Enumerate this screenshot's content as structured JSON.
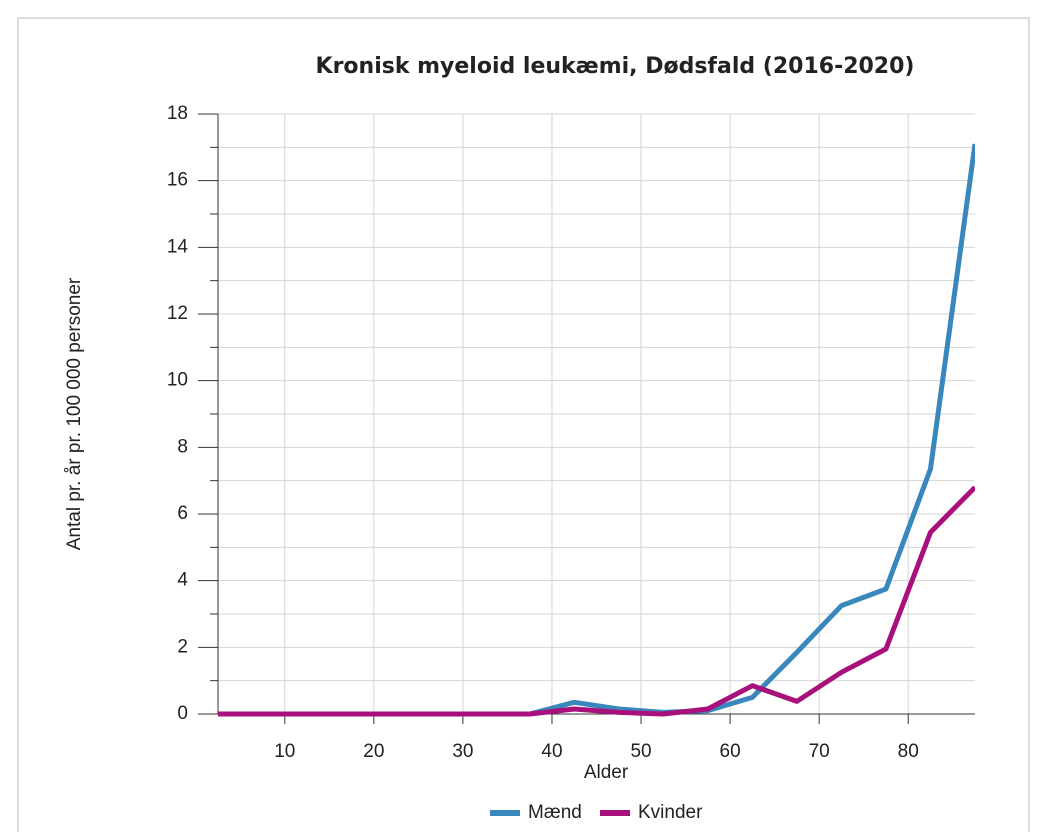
{
  "chart_data": {
    "type": "line",
    "title": "Kronisk myeloid leukæmi, Dødsfald (2016-2020)",
    "xlabel": "Alder",
    "ylabel": "Antal pr. år pr. 100 000 personer",
    "x": [
      2.5,
      7.5,
      12.5,
      17.5,
      22.5,
      27.5,
      32.5,
      37.5,
      42.5,
      47.5,
      52.5,
      57.5,
      62.5,
      67.5,
      72.5,
      77.5,
      82.5,
      87.5
    ],
    "series": [
      {
        "name": "Mænd",
        "color": "#3a87bd",
        "values": [
          0,
          0,
          0,
          0,
          0,
          0,
          0,
          0,
          0.35,
          0.15,
          0.05,
          0.1,
          0.5,
          1.85,
          3.25,
          3.75,
          7.35,
          17.1
        ]
      },
      {
        "name": "Kvinder",
        "color": "#a8117c",
        "values": [
          0,
          0,
          0,
          0,
          0,
          0,
          0,
          0,
          0.15,
          0.05,
          0,
          0.15,
          0.85,
          0.38,
          1.25,
          1.95,
          5.45,
          6.8
        ]
      }
    ],
    "xlim": [
      2.5,
      87.5
    ],
    "xticks": [
      10,
      20,
      30,
      40,
      50,
      60,
      70,
      80
    ],
    "ylim": [
      0,
      18
    ],
    "yticks": [
      0,
      2,
      4,
      6,
      8,
      10,
      12,
      14,
      16,
      18
    ],
    "yminorticks": [
      1,
      3,
      5,
      7,
      9,
      11,
      13,
      15,
      17
    ],
    "grid": true,
    "legend": "bottom"
  }
}
